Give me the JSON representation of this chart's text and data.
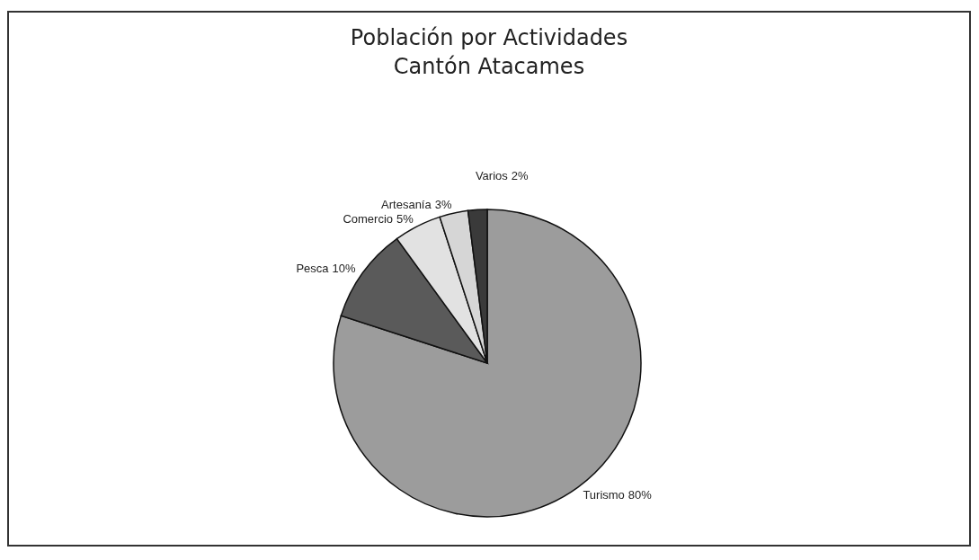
{
  "chart_data": {
    "type": "pie",
    "title": "Población por Actividades",
    "subtitle": "Cantón Atacames",
    "categories": [
      "Turismo",
      "Pesca",
      "Comercio",
      "Artesanía",
      "Varios"
    ],
    "values": [
      80,
      10,
      5,
      3,
      2
    ],
    "colors": [
      "#9c9c9c",
      "#5a5a5a",
      "#e2e2e2",
      "#d6d6d6",
      "#3a3a3a"
    ],
    "value_labels": [
      "80%",
      "10%",
      "5%",
      "3%",
      "2%"
    ],
    "legend": false
  }
}
